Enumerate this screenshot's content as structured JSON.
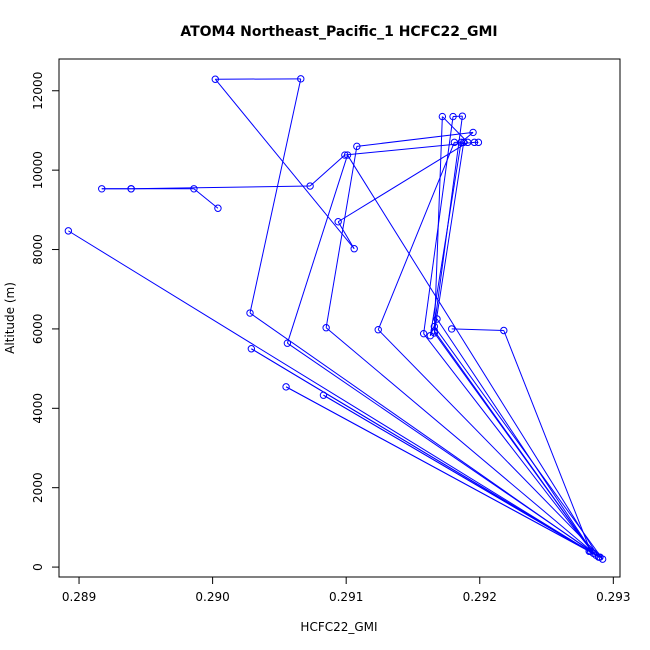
{
  "chart_data": {
    "type": "line",
    "title": "ATOM4 Northeast_Pacific_1 HCFC22_GMI",
    "xlabel": "HCFC22_GMI",
    "ylabel": "Altitude (m)",
    "xlim": [
      0.28885,
      0.29305
    ],
    "ylim": [
      -250,
      12800
    ],
    "x_ticks": [
      0.289,
      0.29,
      0.291,
      0.292,
      0.293
    ],
    "x_tick_labels": [
      "0.289",
      "0.290",
      "0.291",
      "0.292",
      "0.293"
    ],
    "y_ticks": [
      0,
      2000,
      4000,
      6000,
      8000,
      10000,
      12000
    ],
    "y_tick_labels": [
      "0",
      "2000",
      "4000",
      "6000",
      "8000",
      "10000",
      "12000"
    ],
    "grid": false,
    "legend": "none",
    "color": "#0000ff",
    "series": [
      {
        "x": [
          0.28892,
          0.29282,
          0.29029,
          0.29287,
          0.29083,
          0.29282,
          0.29055,
          0.2929,
          0.29056,
          0.29101,
          0.29289,
          0.29085,
          0.29108,
          0.29195,
          0.29186,
          0.29163,
          0.29168,
          0.29285,
          0.29158,
          0.2918,
          0.29187,
          0.29166,
          0.29292,
          0.29124,
          0.29181,
          0.29188,
          0.29166,
          0.29285,
          0.29166,
          0.29172,
          0.29191,
          0.29094,
          0.29106,
          0.29002,
          0.29066,
          0.29028,
          0.29283,
          0.29218,
          0.29179
        ],
        "y": [
          8470,
          400,
          5500,
          300,
          4330,
          400,
          4540,
          250,
          5640,
          10380,
          250,
          6030,
          10600,
          10950,
          10700,
          5830,
          6250,
          350,
          5880,
          11350,
          11360,
          6060,
          200,
          5980,
          10700,
          10700,
          5900,
          350,
          5950,
          11350,
          10700,
          8700,
          8020,
          12290,
          12300,
          6400,
          400,
          5960,
          6000
        ]
      },
      {
        "x": [
          0.29004,
          0.28986,
          0.28939,
          0.28917,
          0.28939,
          0.29073,
          0.29099,
          0.29196,
          0.29199
        ],
        "y": [
          9040,
          9530,
          9530,
          9530,
          9530,
          9600,
          10380,
          10700,
          10700
        ]
      }
    ]
  }
}
